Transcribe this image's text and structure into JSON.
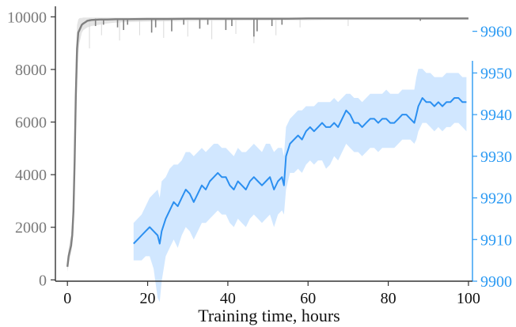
{
  "chart_data": {
    "type": "line",
    "title": "",
    "xlabel": "Training time, hours",
    "ylabel": "",
    "ylabel_right": "",
    "xlim": [
      -3,
      101
    ],
    "ylim": [
      -50,
      10400
    ],
    "ylim_right": [
      9900,
      9966
    ],
    "x_ticks": [
      0,
      20,
      40,
      60,
      80,
      100
    ],
    "x_tick_labels": [
      "0",
      "20",
      "40",
      "60",
      "80",
      "100"
    ],
    "y_ticks": [
      0,
      2000,
      4000,
      6000,
      8000,
      10000
    ],
    "y_tick_labels": [
      "0",
      "2000",
      "4000",
      "6000",
      "8000",
      "10000"
    ],
    "y_right_ticks": [
      9900,
      9910,
      9920,
      9930,
      9940,
      9950,
      9960
    ],
    "y_right_tick_labels": [
      "9900",
      "9910",
      "9920",
      "9930",
      "9940",
      "9950",
      "9960"
    ],
    "grid": false,
    "legend": "none",
    "colors": {
      "gray_line": "#808080",
      "gray_band": "#d9d9d9",
      "blue_line": "#2b8ff0",
      "blue_band": "#cfe6ff",
      "right_axis": "#2b9af3",
      "left_axis": "#333333"
    },
    "series": [
      {
        "axis": "left",
        "color": "#808080",
        "x": [
          0,
          0.3,
          0.6,
          0.9,
          1.2,
          1.5,
          1.8,
          2.1,
          2.4,
          2.7,
          3.0,
          3.3,
          3.6,
          4.0,
          4.5,
          5,
          6,
          8,
          10,
          12,
          15,
          20,
          25,
          30,
          35,
          40,
          45,
          50,
          55,
          60,
          65,
          70,
          75,
          80,
          85,
          90,
          95,
          100
        ],
        "y": [
          500,
          900,
          1100,
          1300,
          1700,
          2600,
          4500,
          7000,
          8800,
          9400,
          9500,
          9600,
          9700,
          9750,
          9800,
          9850,
          9880,
          9900,
          9900,
          9910,
          9910,
          9920,
          9920,
          9930,
          9930,
          9930,
          9930,
          9930,
          9930,
          9940,
          9940,
          9940,
          9940,
          9940,
          9940,
          9940,
          9940,
          9940
        ],
        "band_low": [
          300,
          600,
          800,
          1000,
          1300,
          2000,
          3500,
          5500,
          7500,
          8600,
          9000,
          9200,
          9400,
          9500,
          9550,
          9600,
          9650,
          9700,
          9750,
          9780,
          9800,
          9820,
          9830,
          9840,
          9850,
          9850,
          9860,
          9860,
          9870,
          9870,
          9880,
          9880,
          9880,
          9880,
          9890,
          9890,
          9890,
          9890
        ],
        "band_high": [
          800,
          1200,
          1500,
          1700,
          2300,
          3300,
          5800,
          8500,
          9700,
          9900,
          9950,
          9960,
          9960,
          9970,
          9970,
          9970,
          9970,
          9970,
          9970,
          9970,
          9970,
          9970,
          9970,
          9970,
          9970,
          9970,
          9970,
          9970,
          9970,
          9970,
          9970,
          9970,
          9970,
          9970,
          9970,
          9970,
          9970,
          9970
        ],
        "dips": [
          {
            "x": 7.0,
            "y": 9650
          },
          {
            "x": 9.0,
            "y": 9700
          },
          {
            "x": 12.5,
            "y": 9600
          },
          {
            "x": 14.0,
            "y": 9500
          },
          {
            "x": 15.0,
            "y": 9700
          },
          {
            "x": 21.0,
            "y": 9400
          },
          {
            "x": 22.0,
            "y": 9600
          },
          {
            "x": 26.0,
            "y": 9450
          },
          {
            "x": 29.0,
            "y": 9700
          },
          {
            "x": 33.0,
            "y": 9550
          },
          {
            "x": 35.0,
            "y": 9700
          },
          {
            "x": 39.5,
            "y": 9500
          },
          {
            "x": 41.0,
            "y": 9650
          },
          {
            "x": 46.5,
            "y": 9250
          },
          {
            "x": 47.3,
            "y": 9450
          },
          {
            "x": 51.0,
            "y": 9650
          },
          {
            "x": 53.5,
            "y": 9700
          },
          {
            "x": 88.0,
            "y": 9850
          }
        ],
        "band_spikes": [
          {
            "x": 5.5,
            "y": 8800
          },
          {
            "x": 8.5,
            "y": 9300
          },
          {
            "x": 13.0,
            "y": 9100
          },
          {
            "x": 18.0,
            "y": 9300
          },
          {
            "x": 24.0,
            "y": 9200
          },
          {
            "x": 30.0,
            "y": 9250
          },
          {
            "x": 36.0,
            "y": 9150
          },
          {
            "x": 42.0,
            "y": 9350
          },
          {
            "x": 46.5,
            "y": 9000
          },
          {
            "x": 52.0,
            "y": 9300
          },
          {
            "x": 58.0,
            "y": 9600
          },
          {
            "x": 70.0,
            "y": 9650
          }
        ]
      },
      {
        "axis": "right",
        "color": "#2b8ff0",
        "x": [
          16.5,
          17.5,
          18.5,
          19.5,
          20.5,
          21.5,
          22.5,
          23.0,
          23.5,
          24.5,
          25.5,
          26.5,
          27.5,
          28.5,
          29.5,
          30.5,
          31.5,
          32.5,
          33.5,
          34.5,
          35.5,
          36.5,
          37.5,
          38.5,
          39.5,
          40.5,
          41.5,
          42.5,
          43.5,
          44.5,
          45.5,
          46.5,
          47.5,
          48.5,
          49.5,
          50.5,
          51.5,
          52.5,
          53.5,
          54.0,
          54.5,
          55.5,
          56.5,
          57.5,
          58.5,
          59.5,
          60.5,
          61.5,
          62.5,
          63.5,
          64.5,
          65.5,
          66.5,
          67.5,
          68.5,
          69.5,
          70.5,
          71.5,
          72.5,
          73.5,
          74.5,
          75.5,
          76.5,
          77.5,
          78.5,
          79.5,
          80.5,
          81.5,
          82.5,
          83.5,
          84.5,
          85.5,
          86.5,
          87.0,
          87.5,
          88.5,
          89.5,
          90.5,
          91.5,
          92.5,
          93.5,
          94.5,
          95.5,
          96.5,
          97.5,
          98.5,
          99.5
        ],
        "y": [
          9909,
          9910,
          9911,
          9912,
          9913,
          9912,
          9911,
          9909,
          9912,
          9915,
          9917,
          9919,
          9918,
          9920,
          9922,
          9921,
          9919,
          9921,
          9923,
          9922,
          9924,
          9925,
          9926,
          9925,
          9925,
          9923,
          9922,
          9924,
          9923,
          9922,
          9924,
          9925,
          9924,
          9923,
          9924,
          9925,
          9922,
          9924,
          9925,
          9923,
          9930,
          9933,
          9934,
          9935,
          9934,
          9936,
          9937,
          9936,
          9937,
          9938,
          9937,
          9937,
          9938,
          9937,
          9939,
          9941,
          9940,
          9938,
          9938,
          9937,
          9938,
          9939,
          9939,
          9938,
          9939,
          9939,
          9938,
          9938,
          9939,
          9940,
          9940,
          9939,
          9938,
          9940,
          9942,
          9944,
          9943,
          9943,
          9942,
          9943,
          9942,
          9943,
          9943,
          9944,
          9944,
          9943,
          9943
        ],
        "band_low": [
          9905,
          9905,
          9905,
          9906,
          9906,
          9903,
          9896,
          9895,
          9900,
          9906,
          9908,
          9910,
          9908,
          9911,
          9913,
          9912,
          9910,
          9912,
          9914,
          9914,
          9915,
          9916,
          9917,
          9916,
          9916,
          9914,
          9913,
          9915,
          9914,
          9913,
          9915,
          9916,
          9915,
          9914,
          9915,
          9916,
          9913,
          9916,
          9917,
          9916,
          9922,
          9926,
          9926,
          9927,
          9926,
          9928,
          9929,
          9928,
          9929,
          9929,
          9927,
          9928,
          9930,
          9929,
          9931,
          9933,
          9932,
          9931,
          9931,
          9930,
          9931,
          9932,
          9932,
          9931,
          9932,
          9932,
          9932,
          9932,
          9933,
          9934,
          9934,
          9934,
          9933,
          9934,
          9936,
          9938,
          9938,
          9937,
          9936,
          9937,
          9936,
          9937,
          9937,
          9938,
          9938,
          9937,
          9936
        ],
        "band_high": [
          9914,
          9915,
          9916,
          9918,
          9920,
          9921,
          9922,
          9920,
          9924,
          9925,
          9927,
          9928,
          9928,
          9929,
          9931,
          9931,
          9930,
          9931,
          9932,
          9931,
          9932,
          9933,
          9933,
          9932,
          9932,
          9931,
          9930,
          9932,
          9931,
          9931,
          9932,
          9933,
          9932,
          9931,
          9933,
          9933,
          9931,
          9932,
          9932,
          9930,
          9937,
          9939,
          9940,
          9941,
          9941,
          9942,
          9942,
          9942,
          9943,
          9943,
          9943,
          9943,
          9944,
          9943,
          9944,
          9945,
          9945,
          9944,
          9944,
          9943,
          9944,
          9945,
          9945,
          9945,
          9945,
          9946,
          9945,
          9945,
          9945,
          9946,
          9946,
          9946,
          9946,
          9949,
          9951,
          9951,
          9950,
          9950,
          9949,
          9949,
          9949,
          9950,
          9950,
          9950,
          9950,
          9949,
          9949
        ]
      }
    ]
  }
}
